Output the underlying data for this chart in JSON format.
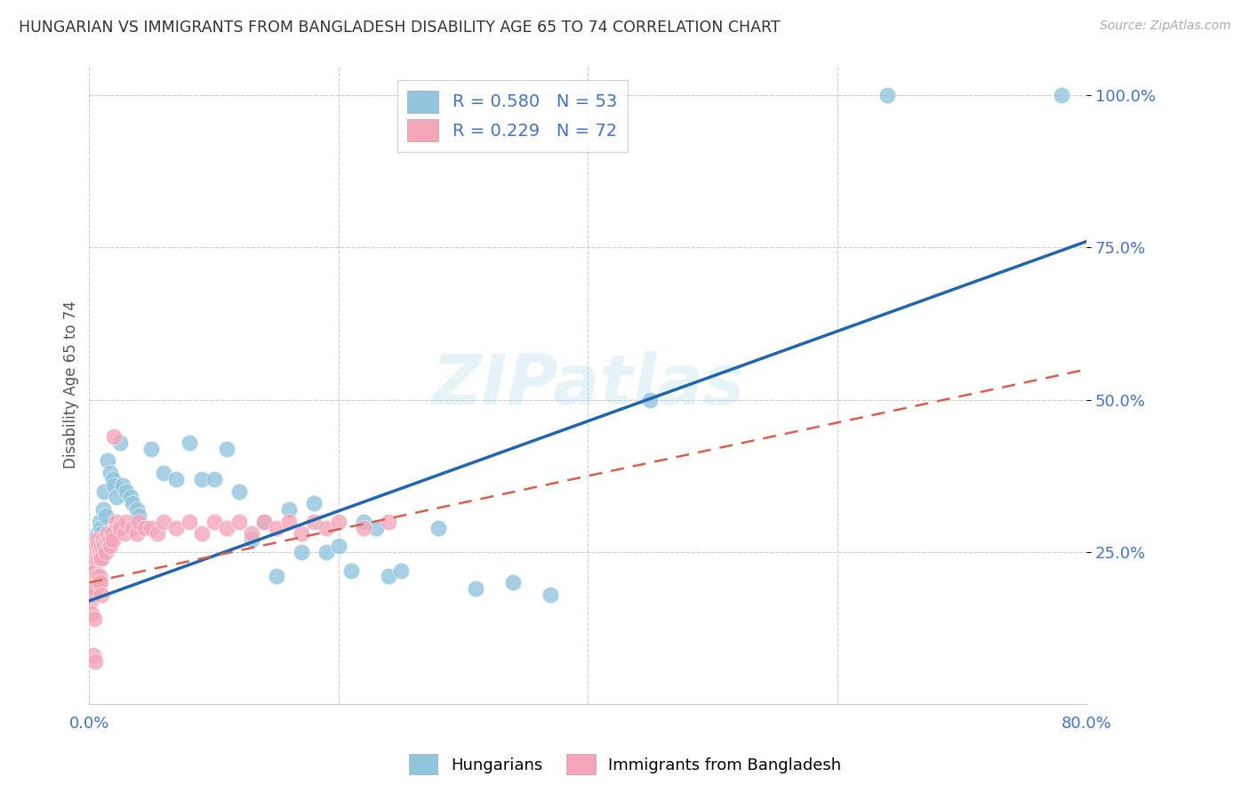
{
  "title": "HUNGARIAN VS IMMIGRANTS FROM BANGLADESH DISABILITY AGE 65 TO 74 CORRELATION CHART",
  "source": "Source: ZipAtlas.com",
  "ylabel": "Disability Age 65 to 74",
  "legend1_color": "#92c5de",
  "legend2_color": "#f4a6b8",
  "line1_color": "#2166ac",
  "line2_color": "#d6604d",
  "watermark": "ZIPatlas",
  "background_color": "#ffffff",
  "xlim": [
    0.0,
    0.8
  ],
  "ylim": [
    0.0,
    1.05
  ],
  "yticks": [
    0.25,
    0.5,
    0.75,
    1.0
  ],
  "xtick_positions": [
    0.0,
    0.2,
    0.4,
    0.6,
    0.8
  ],
  "line1_x0": 0.0,
  "line1_y0": 0.17,
  "line1_x1": 0.8,
  "line1_y1": 0.76,
  "line2_x0": 0.0,
  "line2_y0": 0.2,
  "line2_x1": 0.8,
  "line2_y1": 0.55,
  "hungarian_x": [
    0.002,
    0.003,
    0.004,
    0.005,
    0.006,
    0.007,
    0.008,
    0.009,
    0.01,
    0.011,
    0.012,
    0.013,
    0.015,
    0.017,
    0.019,
    0.02,
    0.022,
    0.025,
    0.027,
    0.03,
    0.033,
    0.035,
    0.038,
    0.04,
    0.05,
    0.06,
    0.07,
    0.08,
    0.09,
    0.1,
    0.11,
    0.12,
    0.13,
    0.14,
    0.15,
    0.16,
    0.17,
    0.18,
    0.19,
    0.2,
    0.21,
    0.22,
    0.23,
    0.24,
    0.25,
    0.28,
    0.31,
    0.34,
    0.37,
    0.45,
    0.64,
    0.78
  ],
  "hungarian_y": [
    0.25,
    0.27,
    0.23,
    0.26,
    0.24,
    0.28,
    0.3,
    0.29,
    0.28,
    0.32,
    0.35,
    0.31,
    0.4,
    0.38,
    0.37,
    0.36,
    0.34,
    0.43,
    0.36,
    0.35,
    0.34,
    0.33,
    0.32,
    0.31,
    0.42,
    0.38,
    0.37,
    0.43,
    0.37,
    0.37,
    0.42,
    0.35,
    0.27,
    0.3,
    0.21,
    0.32,
    0.25,
    0.33,
    0.25,
    0.26,
    0.22,
    0.3,
    0.29,
    0.21,
    0.22,
    0.29,
    0.19,
    0.2,
    0.18,
    0.5,
    1.0,
    1.0
  ],
  "bangladesh_x": [
    0.001,
    0.001,
    0.001,
    0.002,
    0.002,
    0.002,
    0.002,
    0.003,
    0.003,
    0.003,
    0.003,
    0.003,
    0.004,
    0.004,
    0.004,
    0.004,
    0.005,
    0.005,
    0.005,
    0.005,
    0.005,
    0.006,
    0.006,
    0.006,
    0.007,
    0.007,
    0.007,
    0.008,
    0.008,
    0.009,
    0.009,
    0.01,
    0.01,
    0.01,
    0.011,
    0.012,
    0.013,
    0.014,
    0.015,
    0.016,
    0.017,
    0.018,
    0.019,
    0.02,
    0.022,
    0.025,
    0.028,
    0.03,
    0.035,
    0.038,
    0.04,
    0.045,
    0.05,
    0.055,
    0.06,
    0.07,
    0.08,
    0.09,
    0.1,
    0.11,
    0.12,
    0.13,
    0.14,
    0.15,
    0.16,
    0.17,
    0.18,
    0.19,
    0.2,
    0.22,
    0.24
  ],
  "bangladesh_y": [
    0.22,
    0.2,
    0.17,
    0.23,
    0.21,
    0.19,
    0.15,
    0.24,
    0.22,
    0.2,
    0.18,
    0.08,
    0.25,
    0.23,
    0.21,
    0.14,
    0.26,
    0.24,
    0.22,
    0.19,
    0.07,
    0.27,
    0.25,
    0.21,
    0.26,
    0.24,
    0.2,
    0.25,
    0.21,
    0.24,
    0.2,
    0.26,
    0.24,
    0.18,
    0.27,
    0.26,
    0.25,
    0.27,
    0.28,
    0.27,
    0.26,
    0.28,
    0.27,
    0.44,
    0.3,
    0.29,
    0.28,
    0.3,
    0.29,
    0.28,
    0.3,
    0.29,
    0.29,
    0.28,
    0.3,
    0.29,
    0.3,
    0.28,
    0.3,
    0.29,
    0.3,
    0.28,
    0.3,
    0.29,
    0.3,
    0.28,
    0.3,
    0.29,
    0.3,
    0.29,
    0.3
  ]
}
